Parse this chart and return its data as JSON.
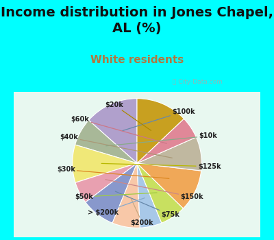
{
  "title": "Income distribution in Jones Chapel,\nAL (%)",
  "subtitle": "White residents",
  "background_color": "#00FFFF",
  "labels": [
    "$100k",
    "$10k",
    "$125k",
    "$150k",
    "$75k",
    "$200k",
    "> $200k",
    "$50k",
    "$30k",
    "$40k",
    "$60k",
    "$20k"
  ],
  "sizes": [
    13.5,
    7.0,
    9.5,
    5.5,
    8.5,
    7.0,
    5.5,
    6.5,
    10.5,
    8.5,
    5.5,
    13.0
  ],
  "colors": [
    "#b0a0cc",
    "#a8b898",
    "#f0e878",
    "#e8a0b0",
    "#8898cc",
    "#f8c8a8",
    "#a8c8e8",
    "#c8e060",
    "#f0a858",
    "#c0b8a0",
    "#e08898",
    "#c8a020"
  ],
  "title_fontsize": 14,
  "subtitle_fontsize": 11,
  "title_color": "#111111",
  "subtitle_color": "#b07840",
  "chart_bg": "#d8f0e0"
}
